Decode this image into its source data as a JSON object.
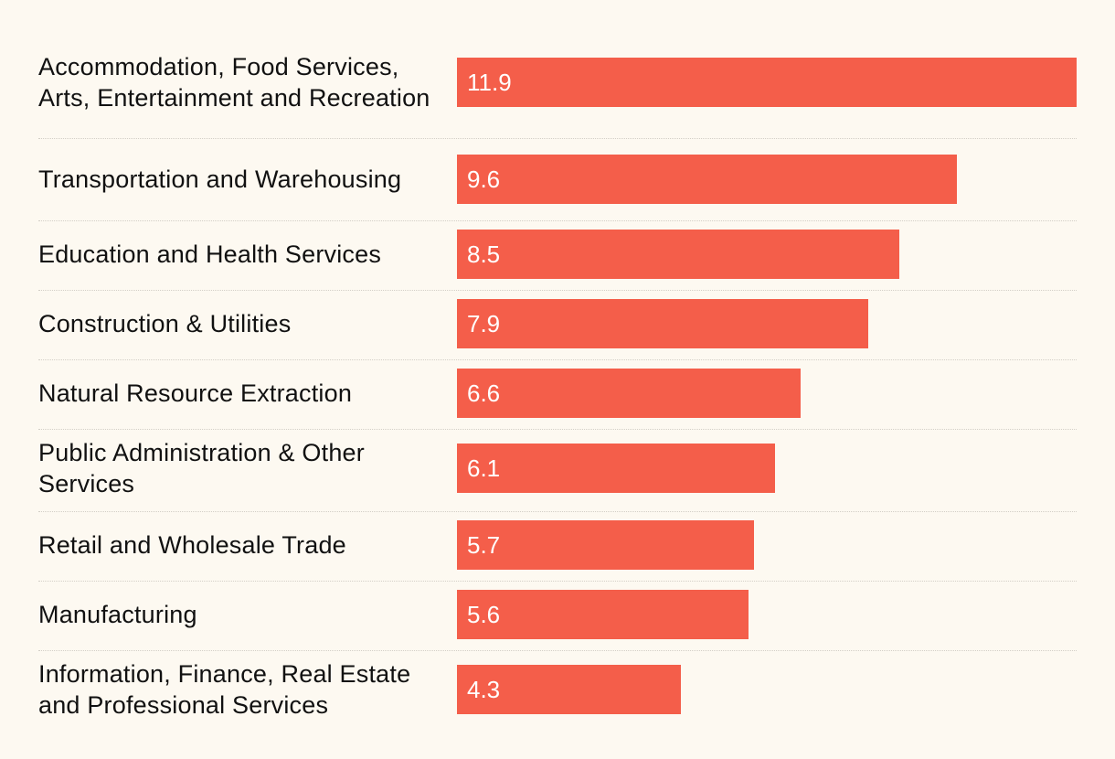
{
  "chart_data": {
    "type": "bar",
    "orientation": "horizontal",
    "title": "",
    "xlabel": "",
    "ylabel": "",
    "xlim": [
      0,
      11.9
    ],
    "categories": [
      "Accommodation, Food Services, Arts, Entertainment and Recreation",
      "Transportation and Warehousing",
      "Education and Health Services",
      "Construction & Utilities",
      "Natural Resource Extraction",
      "Public Administration & Other Services",
      "Retail and Wholesale Trade",
      "Manufacturing",
      "Information, Finance, Real Estate and Professional Services"
    ],
    "values": [
      11.9,
      9.6,
      8.5,
      7.9,
      6.6,
      6.1,
      5.7,
      5.6,
      4.3
    ],
    "value_labels": [
      "11.9",
      "9.6",
      "8.5",
      "7.9",
      "6.6",
      "6.1",
      "5.7",
      "5.6",
      "4.3"
    ],
    "bar_color": "#f45e4a",
    "label_color": "#111111",
    "value_label_color": "#ffffff",
    "background": "#fdf9f1",
    "separator_color": "#d3cfc7"
  }
}
